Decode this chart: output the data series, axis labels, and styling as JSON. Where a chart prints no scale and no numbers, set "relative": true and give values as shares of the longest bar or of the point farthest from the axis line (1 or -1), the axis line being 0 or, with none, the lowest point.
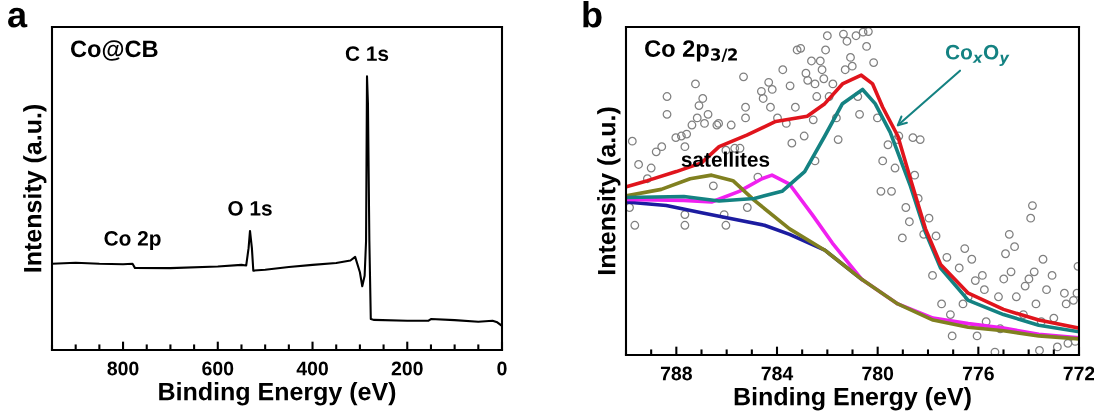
{
  "chart_data": [
    {
      "type": "line",
      "relative": true,
      "xlabel": "Binding Energy (eV)",
      "ylabel": "Intensity (a.u.)",
      "xlim": [
        950,
        0
      ],
      "xticks": [
        800,
        600,
        400,
        200,
        0,
        {
          "value": 900,
          "label": null
        },
        {
          "value": 700,
          "label": null
        },
        {
          "value": 500,
          "label": null
        },
        {
          "value": 300,
          "label": null
        },
        {
          "value": 100,
          "label": null
        }
      ],
      "tick_labels": "x",
      "grid": false,
      "legend": false,
      "marker": "none",
      "line_style": "solid",
      "annotations": [
        "a",
        "Co@CB",
        {
          "text": "C 1s",
          "x": 285,
          "y": 1.0
        },
        {
          "text": "O 1s",
          "x": 532,
          "y": 0.435
        },
        {
          "text": "Co 2p",
          "x": 780,
          "y": 0.315
        }
      ],
      "series": [
        {
          "color": "#000000",
          "x": [
            950,
            900,
            850,
            800,
            780,
            775,
            700,
            600,
            550,
            540,
            535,
            532,
            528,
            525,
            500,
            450,
            400,
            350,
            320,
            310,
            300,
            295,
            290,
            287,
            285,
            283,
            280,
            277,
            270,
            200,
            155,
            150,
            100,
            50,
            20,
            10,
            0
          ],
          "values": [
            0.315,
            0.319,
            0.315,
            0.313,
            0.315,
            0.3,
            0.299,
            0.305,
            0.311,
            0.309,
            0.372,
            0.435,
            0.372,
            0.29,
            0.293,
            0.303,
            0.311,
            0.318,
            0.327,
            0.34,
            0.284,
            0.233,
            0.271,
            0.397,
            1.0,
            0.9,
            0.397,
            0.113,
            0.11,
            0.107,
            0.107,
            0.113,
            0.109,
            0.103,
            0.107,
            0.101,
            0.088
          ]
        }
      ]
    },
    {
      "type": "line",
      "relative": true,
      "xlabel": "Binding Energy (eV)",
      "ylabel": "Intensity (a.u.)",
      "xlim": [
        790,
        772
      ],
      "xticks": [
        788,
        784,
        780,
        776,
        772,
        {
          "value": 786,
          "label": null
        },
        {
          "value": 782,
          "label": null
        },
        {
          "value": 778,
          "label": null
        },
        {
          "value": 774,
          "label": null
        }
      ],
      "tick_labels": "x",
      "grid": false,
      "legend": false,
      "line_style": "solid",
      "annotations": [
        "b",
        "Co 2p$_{3/2}$",
        {
          "text": "satellites",
          "x": 786.6,
          "y": 0.556
        },
        {
          "text": "Co$_{x}$O$_{y}$",
          "x": 779.35,
          "y": 0.7
        }
      ],
      "series": [
        {
          "type": "scatter",
          "marker": "circle",
          "color": "#808080",
          "x": [
            789.75,
            789.5,
            789.65,
            789.86,
            789.15,
            789.0,
            788.8,
            788.58,
            788.37,
            788.37,
            788.02,
            787.8,
            787.66,
            787.59,
            787.66,
            787.66,
            787.38,
            787.24,
            787.17,
            787.1,
            786.95,
            786.88,
            786.74,
            786.53,
            786.39,
            786.32,
            786.1,
            786.03,
            786.03,
            785.82,
            785.68,
            785.47,
            785.33,
            785.25,
            785.25,
            785.18,
            784.76,
            784.62,
            784.55,
            784.33,
            784.26,
            784.19,
            783.98,
            783.77,
            783.63,
            783.48,
            783.41,
            783.27,
            783.2,
            783.06,
            782.92,
            782.85,
            782.78,
            782.63,
            782.56,
            782.49,
            782.49,
            782.42,
            782.28,
            782.21,
            782.14,
            782.07,
            782.0,
            781.93,
            781.78,
            781.64,
            781.57,
            781.36,
            781.29,
            781.22,
            781.08,
            781.01,
            780.86,
            780.79,
            780.72,
            780.58,
            780.44,
            780.37,
            780.16,
            780.01,
            779.87,
            779.8,
            779.59,
            779.45,
            779.31,
            779.24,
            779.16,
            779.02,
            778.88,
            778.74,
            778.6,
            778.53,
            778.39,
            778.31,
            778.17,
            777.96,
            777.82,
            777.68,
            777.46,
            777.25,
            777.11,
            777.04,
            776.76,
            776.61,
            776.54,
            776.4,
            776.26,
            776.12,
            776.05,
            775.84,
            775.76,
            775.69,
            775.34,
            775.2,
            775.13,
            774.99,
            774.92,
            774.77,
            774.7,
            774.56,
            774.49,
            774.21,
            774.14,
            773.99,
            773.92,
            773.85,
            773.78,
            773.71,
            773.57,
            773.5,
            773.43,
            773.29,
            773.07,
            773.0,
            772.86,
            772.58,
            772.51,
            772.44,
            772.22,
            772.15,
            772.08,
            772.04
          ],
          "values": [
            0.661,
            0.589,
            0.401,
            0.456,
            0.545,
            0.578,
            0.628,
            0.644,
            0.799,
            0.744,
            0.672,
            0.677,
            0.644,
            0.683,
            0.434,
            0.401,
            0.711,
            0.838,
            0.733,
            0.771,
            0.793,
            0.716,
            0.744,
            0.523,
            0.711,
            0.716,
            0.434,
            0.401,
            0.633,
            0.711,
            0.639,
            0.639,
            0.86,
            0.766,
            0.733,
            0.456,
            0.55,
            0.815,
            0.793,
            0.843,
            0.766,
            0.821,
            0.733,
            0.882,
            0.716,
            0.832,
            0.655,
            0.766,
            0.943,
            0.948,
            0.677,
            0.871,
            0.849,
            0.909,
            0.727,
            0.838,
            0.6,
            0.799,
            0.909,
            0.882,
            0.854,
            0.943,
            0.987,
            0.799,
            0.838,
            0.733,
            0.666,
            0.992,
            0.882,
            0.97,
            0.92,
            0.893,
            0.987,
            0.799,
            0.744,
            0.998,
            0.954,
            1.0,
            0.904,
            0.733,
            0.506,
            0.6,
            0.65,
            0.506,
            0.578,
            0.666,
            0.677,
            0.362,
            0.456,
            0.412,
            0.672,
            0.556,
            0.484,
            0.666,
            0.373,
            0.423,
            0.246,
            0.368,
            0.158,
            0.302,
            0.125,
            0.059,
            0.269,
            0.158,
            0.329,
            0.18,
            0.296,
            0.23,
            0.059,
            0.246,
            0.202,
            0.103,
            0.009,
            0.18,
            0.081,
            0.235,
            0.313,
            0.373,
            0.257,
            0.335,
            0.18,
            0.125,
            0.213,
            0.235,
            0.423,
            0.462,
            0.257,
            0.158,
            0.014,
            0.103,
            0.296,
            0.202,
            0.246,
            0.114,
            0.025,
            0.191,
            0.158,
            0.036,
            0.169,
            0.042,
            0.191,
            0.274
          ]
        },
        {
          "color": "#1c1ca0",
          "marker": "none",
          "x": [
            790,
            788.4,
            787.0,
            785.6,
            784.5,
            783.5,
            782.1,
            780.65
          ],
          "values": [
            0.473,
            0.462,
            0.44,
            0.418,
            0.401,
            0.373,
            0.324,
            0.235
          ]
        },
        {
          "color": "#f020f0",
          "marker": "none",
          "x": [
            790,
            787.7,
            786.6,
            785.5,
            784.6,
            784.2,
            783.5,
            782.6,
            781.8,
            780.65,
            779.2,
            777.8,
            776.4,
            775.0,
            773.6,
            772
          ],
          "values": [
            0.481,
            0.478,
            0.473,
            0.506,
            0.545,
            0.556,
            0.528,
            0.434,
            0.346,
            0.235,
            0.158,
            0.114,
            0.097,
            0.083,
            0.064,
            0.053
          ]
        },
        {
          "color": "#808020",
          "marker": "none",
          "x": [
            790,
            788.6,
            787.45,
            786.6,
            785.75,
            784.9,
            783.5,
            782.1,
            780.65,
            779.2,
            777.8,
            776.4,
            775.0,
            773.6,
            772
          ],
          "values": [
            0.492,
            0.512,
            0.545,
            0.556,
            0.539,
            0.478,
            0.39,
            0.324,
            0.235,
            0.158,
            0.108,
            0.086,
            0.075,
            0.059,
            0.05
          ]
        },
        {
          "color": "#148282",
          "marker": "none",
          "x": [
            790,
            787.7,
            786.3,
            784.9,
            783.8,
            782.9,
            782.1,
            781.4,
            780.6,
            780.1,
            779.5,
            778.7,
            778.1,
            777.5,
            776.4,
            775.0,
            773.6,
            772
          ],
          "values": [
            0.487,
            0.49,
            0.476,
            0.484,
            0.506,
            0.567,
            0.677,
            0.777,
            0.821,
            0.777,
            0.688,
            0.523,
            0.379,
            0.269,
            0.169,
            0.125,
            0.092,
            0.072
          ]
        },
        {
          "color": "#e0141c",
          "marker": "none",
          "x": [
            790,
            789.15,
            788,
            787.0,
            786.3,
            785.2,
            784.05,
            782.8,
            782.1,
            781.4,
            780.65,
            780.2,
            779.8,
            779.2,
            778.7,
            778.1,
            777.5,
            776.4,
            775.0,
            773.6,
            772
          ],
          "values": [
            0.52,
            0.539,
            0.567,
            0.594,
            0.644,
            0.68,
            0.722,
            0.738,
            0.777,
            0.838,
            0.865,
            0.838,
            0.766,
            0.677,
            0.545,
            0.39,
            0.28,
            0.191,
            0.141,
            0.108,
            0.083
          ]
        }
      ]
    }
  ]
}
